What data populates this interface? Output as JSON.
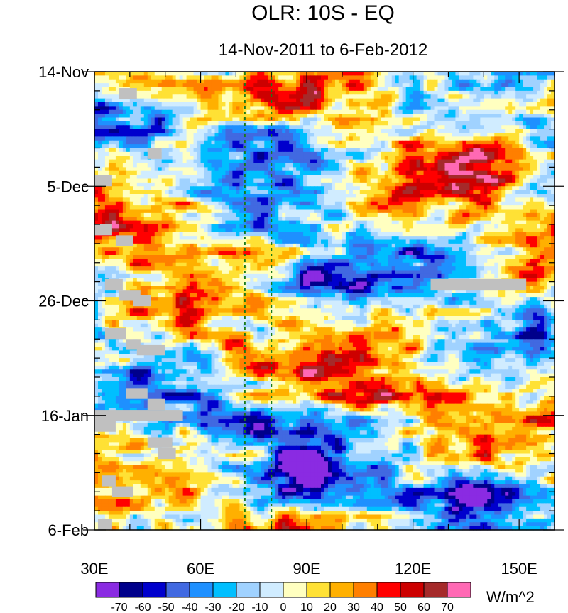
{
  "chart_data": {
    "type": "heatmap",
    "title": "OLR: 10S - EQ",
    "subtitle": "14-Nov-2011 to 6-Feb-2012",
    "units": "W/m^2",
    "x": {
      "min": 30,
      "max": 160,
      "ticks": [
        {
          "value": 30,
          "label": "30E"
        },
        {
          "value": 60,
          "label": "60E"
        },
        {
          "value": 90,
          "label": "90E"
        },
        {
          "value": 120,
          "label": "120E"
        },
        {
          "value": 150,
          "label": "150E"
        }
      ]
    },
    "y": {
      "start_day": 0,
      "end_day": 84,
      "ticks": [
        {
          "day": 0,
          "label": "14-Nov"
        },
        {
          "day": 21,
          "label": "5-Dec"
        },
        {
          "day": 42,
          "label": "26-Dec"
        },
        {
          "day": 63,
          "label": "16-Jan"
        },
        {
          "day": 84,
          "label": "6-Feb"
        }
      ]
    },
    "reference_lines_lon": [
      72.5,
      80
    ],
    "colorbar": {
      "levels": [
        -70,
        -60,
        -50,
        -40,
        -30,
        -20,
        -10,
        0,
        10,
        20,
        30,
        40,
        50,
        60,
        70
      ],
      "level_labels": [
        "-70",
        "-60",
        "-50",
        "-40",
        "-30",
        "-20",
        "-10",
        "0",
        "10",
        "20",
        "30",
        "40",
        "50",
        "60",
        "70"
      ],
      "colors": [
        "#8a2be2",
        "#00008b",
        "#0000cd",
        "#4169e1",
        "#1e90ff",
        "#00bfff",
        "#a0d2ff",
        "#d0ecff",
        "#ffffc0",
        "#ffe135",
        "#ffb000",
        "#ff7f00",
        "#ff0000",
        "#cd0000",
        "#a52a2a",
        "#ff69b4"
      ]
    },
    "missing_color": "#c0c0c0",
    "anomaly_features": [
      {
        "lon_min": 60,
        "lon_max": 100,
        "day_min": 8,
        "day_max": 17,
        "anomaly": -60
      },
      {
        "lon_min": 35,
        "lon_max": 70,
        "day_min": 18,
        "day_max": 32,
        "anomaly": 35
      },
      {
        "lon_min": 78,
        "lon_max": 100,
        "day_min": 35,
        "day_max": 42,
        "anomaly": -55
      },
      {
        "lon_min": 60,
        "lon_max": 90,
        "day_min": 50,
        "day_max": 58,
        "anomaly": 40
      },
      {
        "lon_min": 100,
        "lon_max": 140,
        "day_min": 56,
        "day_max": 64,
        "anomaly": 30
      },
      {
        "lon_min": 60,
        "lon_max": 95,
        "day_min": 60,
        "day_max": 68,
        "anomaly": -40
      },
      {
        "lon_min": 80,
        "lon_max": 100,
        "day_min": 70,
        "day_max": 80,
        "anomaly": -55
      },
      {
        "lon_min": 120,
        "lon_max": 160,
        "day_min": 74,
        "day_max": 80,
        "anomaly": -45
      },
      {
        "lon_min": 80,
        "lon_max": 160,
        "day_min": 0,
        "day_max": 6,
        "anomaly": 25
      },
      {
        "lon_min": 125,
        "lon_max": 160,
        "day_min": 10,
        "day_max": 22,
        "anomaly": 35
      }
    ]
  }
}
